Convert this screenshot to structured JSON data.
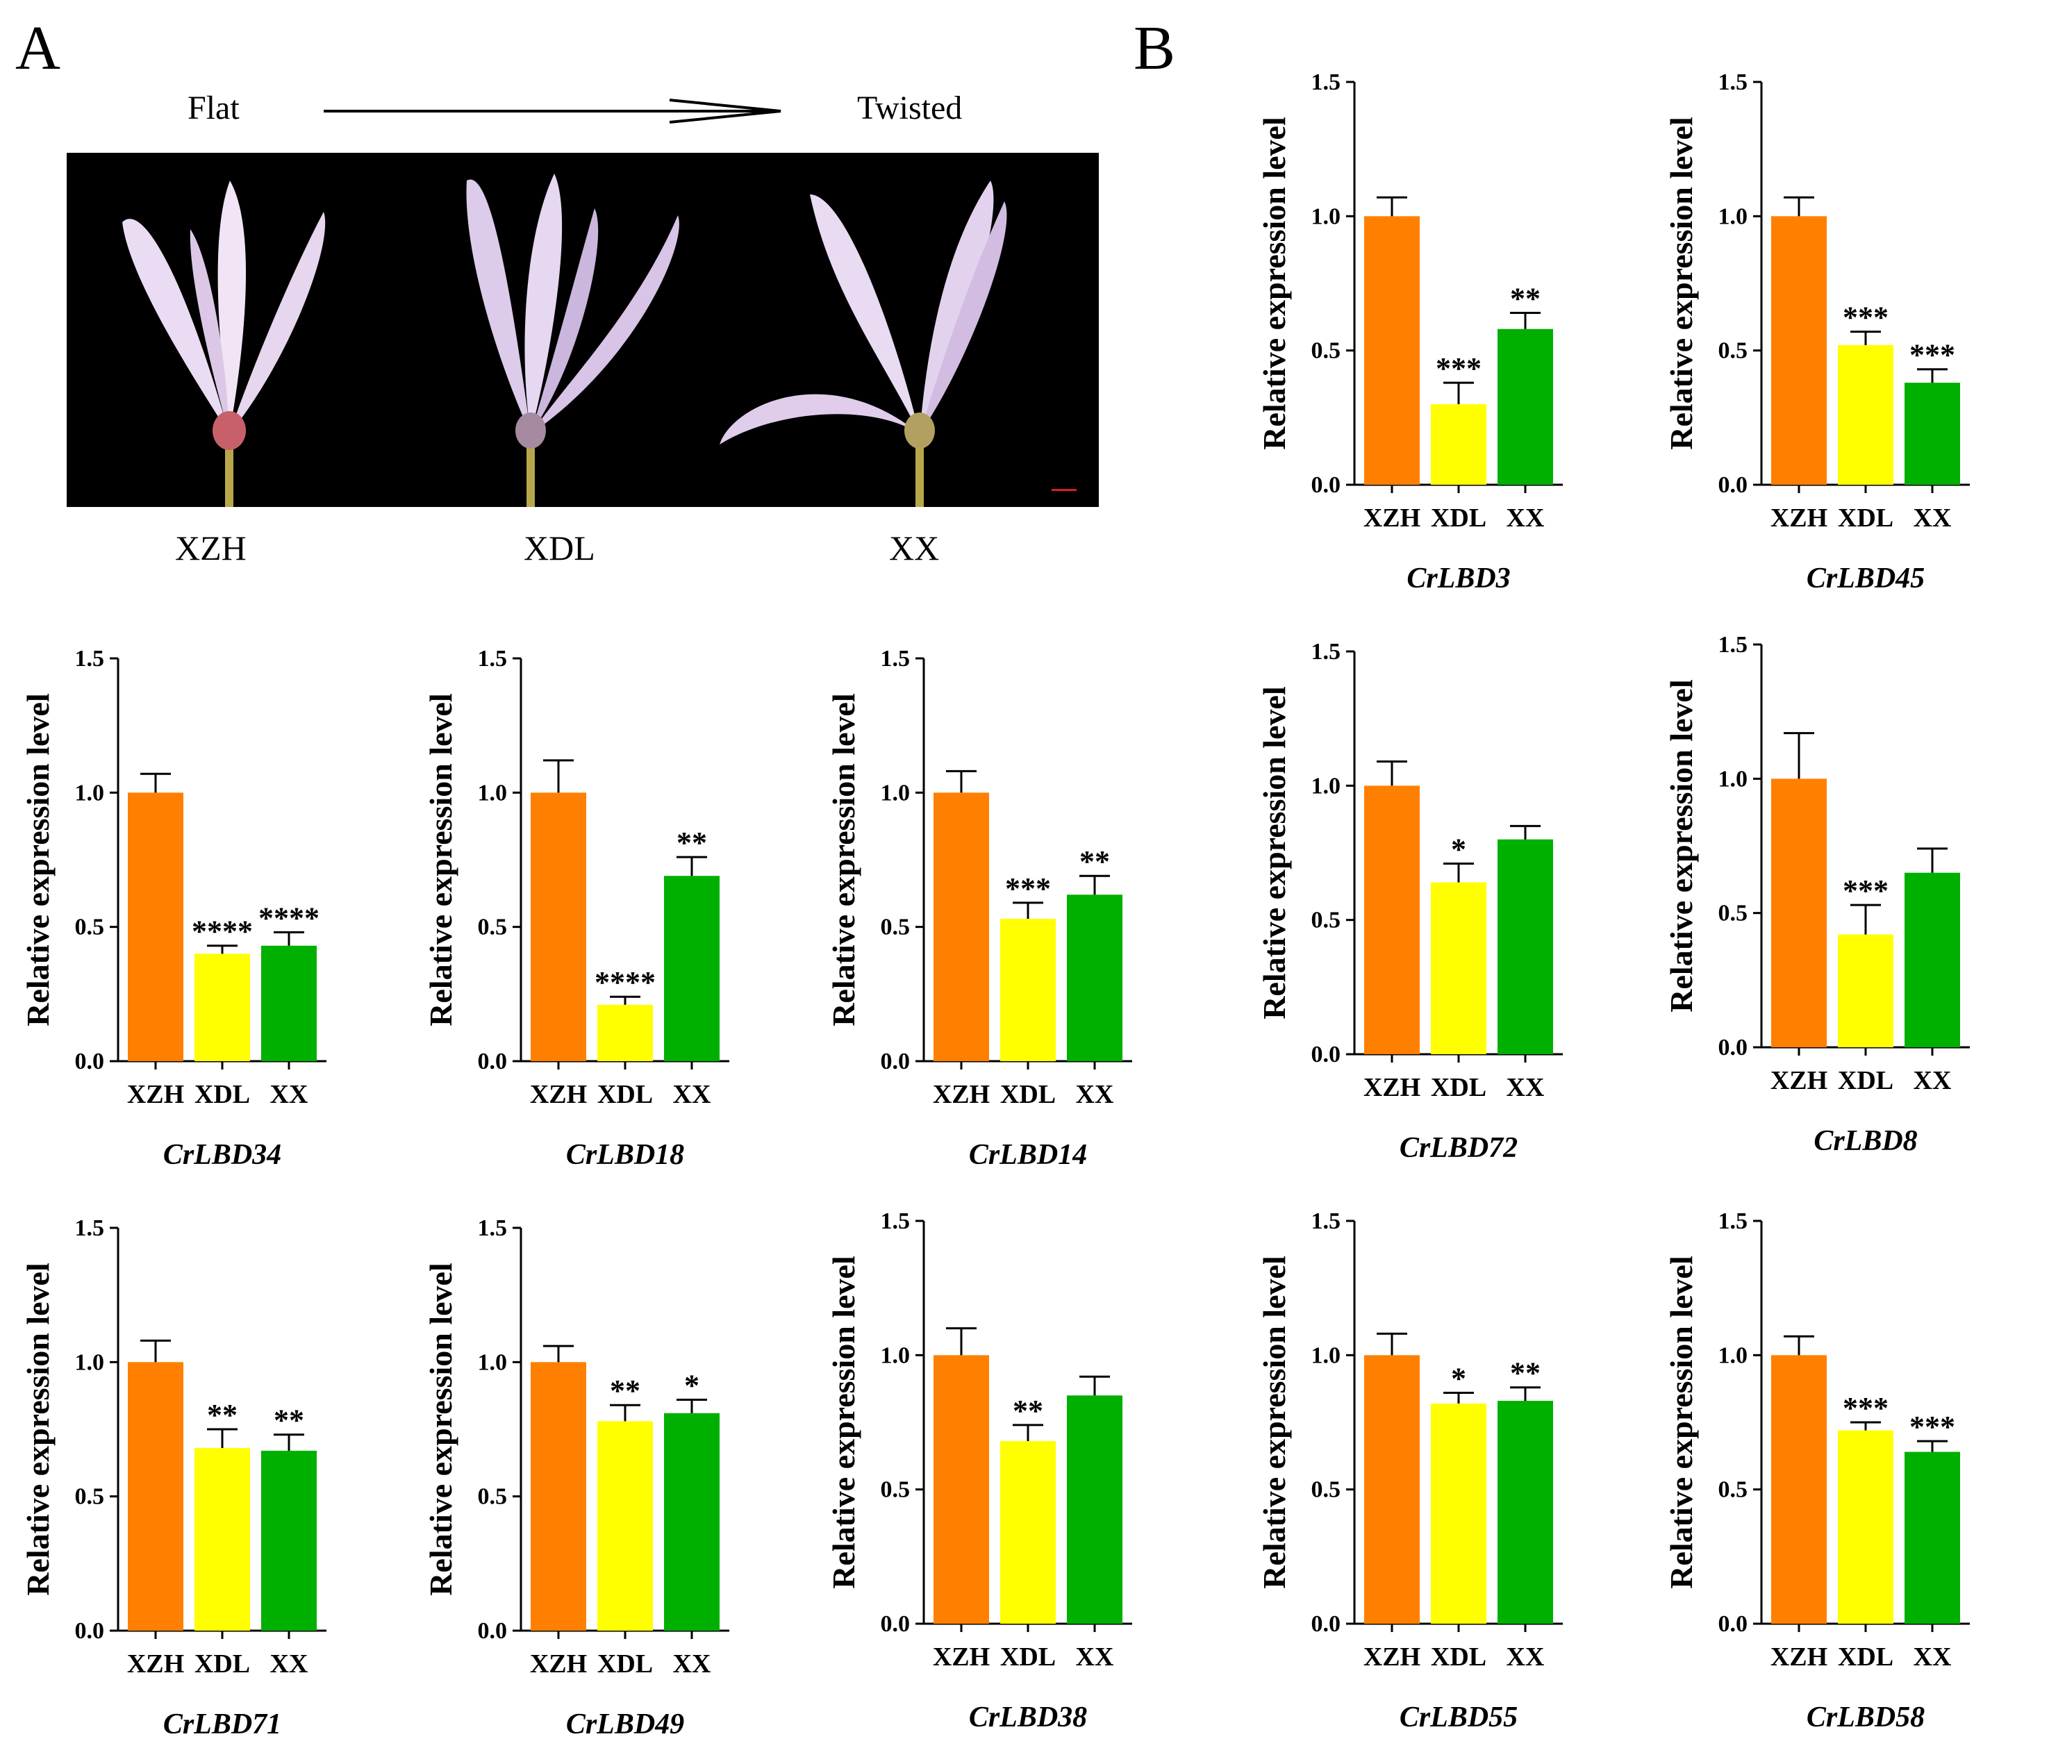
{
  "panel_labels": {
    "a": "A",
    "b": "B"
  },
  "photo_panel": {
    "left_label": "Flat",
    "right_label": "Twisted",
    "flower_labels": [
      "XZH",
      "XDL",
      "XX"
    ]
  },
  "colors": {
    "XZH": "#ff7f00",
    "XDL": "#ffff00",
    "XX": "#00b000"
  },
  "chart_data": [
    {
      "type": "bar",
      "title": "CrLBD3",
      "ylabel": "Relative expression level",
      "categories": [
        "XZH",
        "XDL",
        "XX"
      ],
      "values": [
        1.0,
        0.3,
        0.58
      ],
      "errors": [
        0.07,
        0.08,
        0.06
      ],
      "significance": [
        "",
        "***",
        "**"
      ],
      "ylim": [
        0,
        1.5
      ],
      "yticks": [
        "0.0",
        "0.5",
        "1.0",
        "1.5"
      ]
    },
    {
      "type": "bar",
      "title": "CrLBD45",
      "ylabel": "Relative expression level",
      "categories": [
        "XZH",
        "XDL",
        "XX"
      ],
      "values": [
        1.0,
        0.52,
        0.38
      ],
      "errors": [
        0.07,
        0.05,
        0.05
      ],
      "significance": [
        "",
        "***",
        "***"
      ],
      "ylim": [
        0,
        1.5
      ],
      "yticks": [
        "0.0",
        "0.5",
        "1.0",
        "1.5"
      ]
    },
    {
      "type": "bar",
      "title": "CrLBD34",
      "ylabel": "Relative expression level",
      "categories": [
        "XZH",
        "XDL",
        "XX"
      ],
      "values": [
        1.0,
        0.4,
        0.43
      ],
      "errors": [
        0.07,
        0.03,
        0.05
      ],
      "significance": [
        "",
        "****",
        "****"
      ],
      "ylim": [
        0,
        1.5
      ],
      "yticks": [
        "0.0",
        "0.5",
        "1.0",
        "1.5"
      ]
    },
    {
      "type": "bar",
      "title": "CrLBD18",
      "ylabel": "Relative expression level",
      "categories": [
        "XZH",
        "XDL",
        "XX"
      ],
      "values": [
        1.0,
        0.21,
        0.69
      ],
      "errors": [
        0.12,
        0.03,
        0.07
      ],
      "significance": [
        "",
        "****",
        "**"
      ],
      "ylim": [
        0,
        1.5
      ],
      "yticks": [
        "0.0",
        "0.5",
        "1.0",
        "1.5"
      ]
    },
    {
      "type": "bar",
      "title": "CrLBD14",
      "ylabel": "Relative expression level",
      "categories": [
        "XZH",
        "XDL",
        "XX"
      ],
      "values": [
        1.0,
        0.53,
        0.62
      ],
      "errors": [
        0.08,
        0.06,
        0.07
      ],
      "significance": [
        "",
        "***",
        "**"
      ],
      "ylim": [
        0,
        1.5
      ],
      "yticks": [
        "0.0",
        "0.5",
        "1.0",
        "1.5"
      ]
    },
    {
      "type": "bar",
      "title": "CrLBD72",
      "ylabel": "Relative expression level",
      "categories": [
        "XZH",
        "XDL",
        "XX"
      ],
      "values": [
        1.0,
        0.64,
        0.8
      ],
      "errors": [
        0.09,
        0.07,
        0.05
      ],
      "significance": [
        "",
        "*",
        ""
      ],
      "ylim": [
        0,
        1.5
      ],
      "yticks": [
        "0.0",
        "0.5",
        "1.0",
        "1.5"
      ]
    },
    {
      "type": "bar",
      "title": "CrLBD8",
      "ylabel": "Relative expression level",
      "categories": [
        "XZH",
        "XDL",
        "XX"
      ],
      "values": [
        1.0,
        0.42,
        0.65
      ],
      "errors": [
        0.17,
        0.11,
        0.09
      ],
      "significance": [
        "",
        "***",
        ""
      ],
      "ylim": [
        0,
        1.5
      ],
      "yticks": [
        "0.0",
        "0.5",
        "1.0",
        "1.5"
      ]
    },
    {
      "type": "bar",
      "title": "CrLBD71",
      "ylabel": "Relative expression level",
      "categories": [
        "XZH",
        "XDL",
        "XX"
      ],
      "values": [
        1.0,
        0.68,
        0.67
      ],
      "errors": [
        0.08,
        0.07,
        0.06
      ],
      "significance": [
        "",
        "**",
        "**"
      ],
      "ylim": [
        0,
        1.5
      ],
      "yticks": [
        "0.0",
        "0.5",
        "1.0",
        "1.5"
      ]
    },
    {
      "type": "bar",
      "title": "CrLBD49",
      "ylabel": "Relative expression level",
      "categories": [
        "XZH",
        "XDL",
        "XX"
      ],
      "values": [
        1.0,
        0.78,
        0.81
      ],
      "errors": [
        0.06,
        0.06,
        0.05
      ],
      "significance": [
        "",
        "**",
        "*"
      ],
      "ylim": [
        0,
        1.5
      ],
      "yticks": [
        "0.0",
        "0.5",
        "1.0",
        "1.5"
      ]
    },
    {
      "type": "bar",
      "title": "CrLBD38",
      "ylabel": "Relative expression level",
      "categories": [
        "XZH",
        "XDL",
        "XX"
      ],
      "values": [
        1.0,
        0.68,
        0.85
      ],
      "errors": [
        0.1,
        0.06,
        0.07
      ],
      "significance": [
        "",
        "**",
        ""
      ],
      "ylim": [
        0,
        1.5
      ],
      "yticks": [
        "0.0",
        "0.5",
        "1.0",
        "1.5"
      ]
    },
    {
      "type": "bar",
      "title": "CrLBD55",
      "ylabel": "Relative expression level",
      "categories": [
        "XZH",
        "XDL",
        "XX"
      ],
      "values": [
        1.0,
        0.82,
        0.83
      ],
      "errors": [
        0.08,
        0.04,
        0.05
      ],
      "significance": [
        "",
        "*",
        "**"
      ],
      "ylim": [
        0,
        1.5
      ],
      "yticks": [
        "0.0",
        "0.5",
        "1.0",
        "1.5"
      ]
    },
    {
      "type": "bar",
      "title": "CrLBD58",
      "ylabel": "Relative expression level",
      "categories": [
        "XZH",
        "XDL",
        "XX"
      ],
      "values": [
        1.0,
        0.72,
        0.64
      ],
      "errors": [
        0.07,
        0.03,
        0.04
      ],
      "significance": [
        "",
        "***",
        "***"
      ],
      "ylim": [
        0,
        1.5
      ],
      "yticks": [
        "0.0",
        "0.5",
        "1.0",
        "1.5"
      ]
    }
  ]
}
